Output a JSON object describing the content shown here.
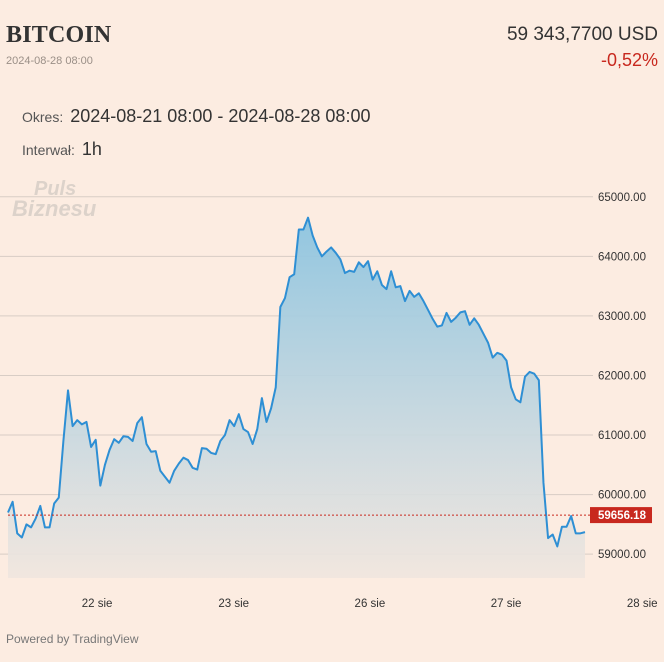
{
  "header": {
    "title": "BITCOIN",
    "timestamp": "2024-08-28 08:00",
    "price": "59 343,7700 USD",
    "change": "-0,52%"
  },
  "meta": {
    "period_label": "Okres:",
    "period_value": "2024-08-21 08:00 - 2024-08-28 08:00",
    "interval_label": "Interwał:",
    "interval_value": "1h"
  },
  "watermark": {
    "line1": "Puls",
    "line2": "Biznesu"
  },
  "footer": {
    "text": "Powered by TradingView"
  },
  "colors": {
    "background": "#fcece1",
    "line": "#2e8fd4",
    "fill_top": "#8cc4e0",
    "fill_bottom": "#f0e6df",
    "gridline": "#d8cdc5",
    "price_line": "#c8281e"
  },
  "chart_data": {
    "type": "area",
    "ylim": [
      58600,
      65450
    ],
    "y_ticks": [
      {
        "value": 65000,
        "label": "65000.00"
      },
      {
        "value": 64000,
        "label": "64000.00"
      },
      {
        "value": 63000,
        "label": "63000.00"
      },
      {
        "value": 62000,
        "label": "62000.00"
      },
      {
        "value": 61000,
        "label": "61000.00"
      },
      {
        "value": 60000,
        "label": "60000.00"
      },
      {
        "value": 59000,
        "label": "59000.00"
      }
    ],
    "x_ticks": [
      {
        "index": 19.3,
        "label": "22 sie"
      },
      {
        "index": 48.9,
        "label": "23 sie"
      },
      {
        "index": 78.4,
        "label": "26 sie"
      },
      {
        "index": 107.9,
        "label": "27 sie"
      },
      {
        "index": 137.4,
        "label": "28 sie"
      }
    ],
    "last_price": {
      "value": 59656.18,
      "label": "59656.18"
    },
    "values": [
      59700,
      59880,
      59350,
      59280,
      59500,
      59450,
      59600,
      59810,
      59450,
      59450,
      59850,
      59950,
      60900,
      61750,
      61150,
      61250,
      61180,
      61220,
      60800,
      60920,
      60150,
      60500,
      60750,
      60930,
      60870,
      60980,
      60970,
      60900,
      61200,
      61300,
      60850,
      60720,
      60730,
      60400,
      60300,
      60200,
      60400,
      60520,
      60620,
      60580,
      60450,
      60420,
      60780,
      60770,
      60700,
      60680,
      60900,
      61000,
      61250,
      61150,
      61350,
      61100,
      61050,
      60850,
      61100,
      61620,
      61220,
      61450,
      61800,
      63150,
      63300,
      63650,
      63700,
      64450,
      64450,
      64650,
      64350,
      64150,
      64000,
      64080,
      64150,
      64060,
      63950,
      63720,
      63760,
      63740,
      63900,
      63820,
      63920,
      63610,
      63750,
      63520,
      63450,
      63750,
      63480,
      63500,
      63250,
      63420,
      63320,
      63380,
      63250,
      63100,
      62950,
      62820,
      62840,
      63050,
      62900,
      62970,
      63060,
      63080,
      62850,
      62960,
      62850,
      62700,
      62550,
      62300,
      62380,
      62350,
      62250,
      61800,
      61600,
      61550,
      61980,
      62060,
      62030,
      61920,
      60200,
      59270,
      59330,
      59130,
      59460,
      59460,
      59640,
      59350,
      59350,
      59370
    ]
  }
}
